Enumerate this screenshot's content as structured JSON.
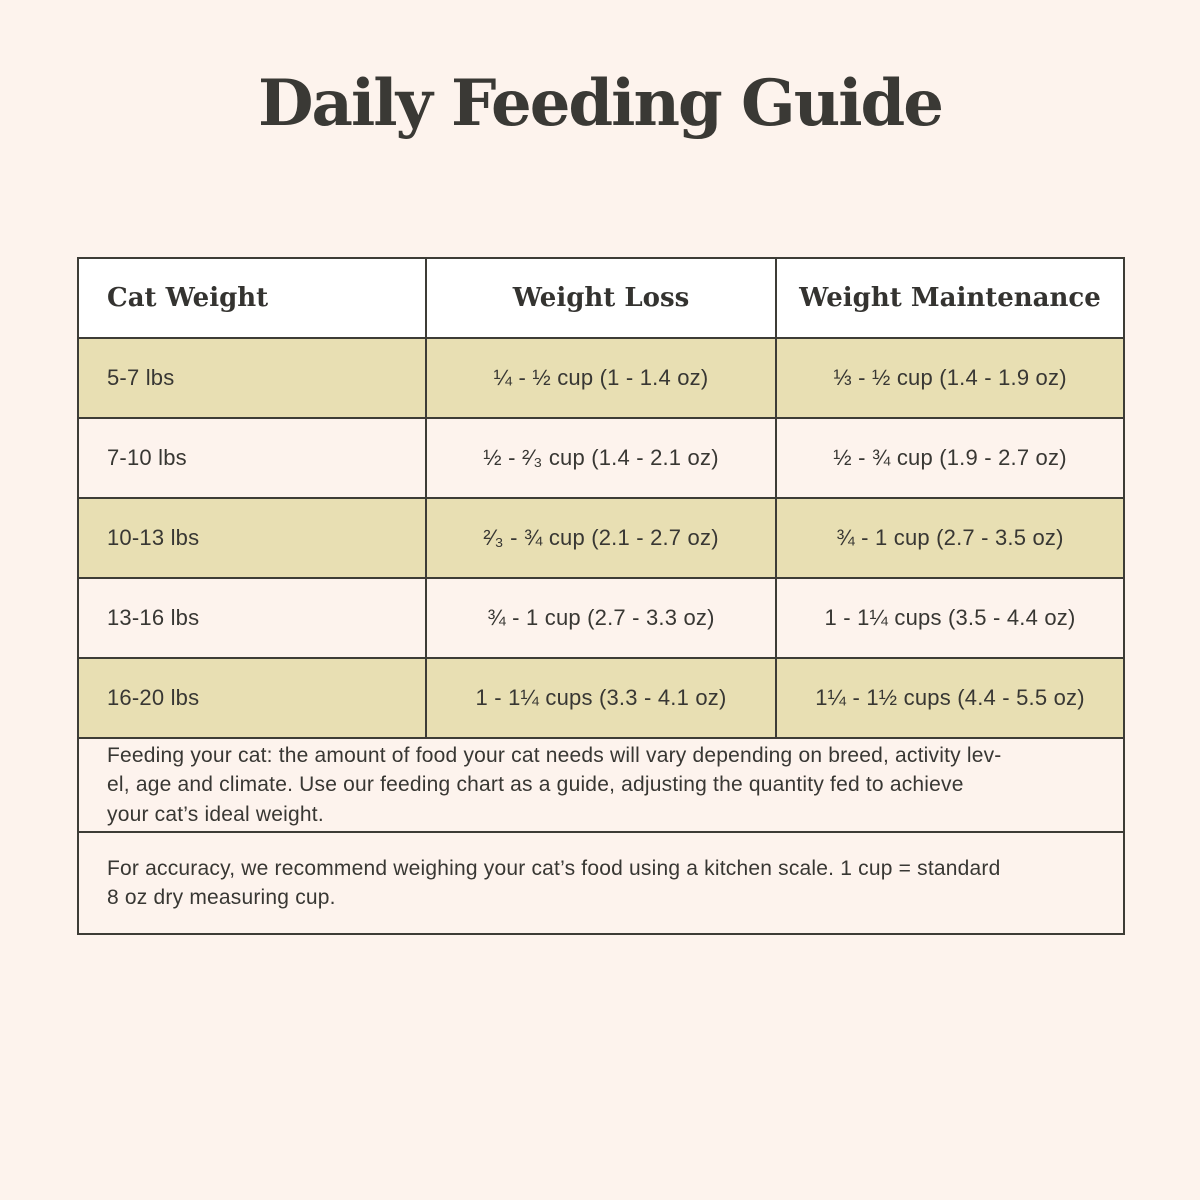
{
  "page": {
    "background_color": "#fdf3ed",
    "accent_khaki": "#e8dfb3",
    "border_color": "#3d3c36",
    "text_color": "#383733"
  },
  "chart_data": {
    "type": "table",
    "title": "Daily Feeding Guide",
    "columns": [
      "Cat Weight",
      "Weight Loss",
      "Weight Maintenance"
    ],
    "rows": [
      [
        "5-7 lbs",
        "¼ - ½ cup (1 - 1.4 oz)",
        "⅓ - ½ cup (1.4 - 1.9 oz)"
      ],
      [
        "7-10 lbs",
        "½ - ²⁄₃ cup (1.4 - 2.1 oz)",
        "½ - ¾ cup (1.9 - 2.7 oz)"
      ],
      [
        "10-13 lbs",
        "²⁄₃ - ¾ cup (2.1 - 2.7 oz)",
        "¾ - 1 cup (2.7 - 3.5 oz)"
      ],
      [
        "13-16 lbs",
        "¾ - 1 cup (2.7 - 3.3 oz)",
        "1 - 1¼ cups (3.5 - 4.4 oz)"
      ],
      [
        "16-20 lbs",
        "1 - 1¼ cups (3.3 - 4.1 oz)",
        "1¼ - 1½ cups (4.4 - 5.5 oz)"
      ]
    ],
    "footnotes": [
      "Feeding your cat: the amount of food your cat needs will vary depending on breed, activity lev-\nel, age and climate. Use our feeding chart as a guide, adjusting the quantity fed to achieve\nyour cat’s ideal weight.",
      "For accuracy, we recommend weighing your cat’s food using a kitchen scale. 1 cup = standard\n8 oz dry measuring cup."
    ],
    "layout": {
      "header_background": "#ffffff",
      "alternating_row_background": [
        "#e8dfb3",
        "#fdf3ed"
      ],
      "grid": true
    }
  }
}
